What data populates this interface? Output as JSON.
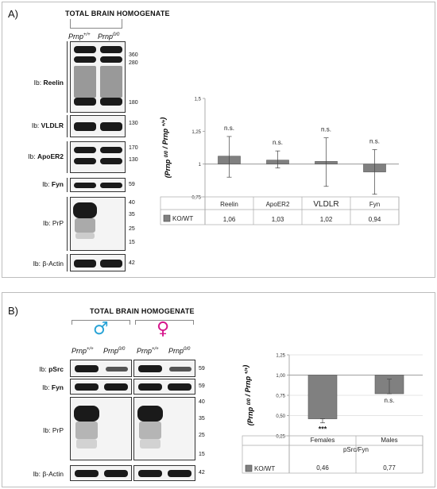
{
  "panel_a": {
    "letter": "A)",
    "title": "TOTAL BRAIN HOMOGENATE",
    "genotypes": [
      {
        "base": "Prnp",
        "sup": "+/+"
      },
      {
        "base": "Prnp",
        "sup": "0/0"
      }
    ],
    "blots": [
      {
        "label_prefix": "Ib: ",
        "label_strong": "Reelin",
        "mw": [
          "360",
          "280",
          "180"
        ]
      },
      {
        "label_prefix": "Ib: ",
        "label_strong": "VLDLR",
        "mw": [
          "130"
        ]
      },
      {
        "label_prefix": "Ib: ",
        "label_strong": "ApoER2",
        "mw": [
          "170",
          "130"
        ]
      },
      {
        "label_prefix": "Ib: ",
        "label_strong": "Fyn",
        "mw": [
          "59"
        ]
      },
      {
        "label_prefix": "Ib: PrP",
        "label_strong": "",
        "mw": [
          "40",
          "35",
          "25",
          "15"
        ]
      },
      {
        "label_prefix": "Ib: β-Actin",
        "label_strong": "",
        "mw": [
          "42"
        ]
      }
    ]
  },
  "panel_b": {
    "letter": "B)",
    "title": "TOTAL BRAIN HOMOGENATE",
    "male_symbol": "♂",
    "female_symbol": "♀",
    "male_color": "#29a3d6",
    "female_color": "#d6178c",
    "genotypes": [
      {
        "base": "Prnp",
        "sup": "+/+"
      },
      {
        "base": "Prnp",
        "sup": "0/0"
      },
      {
        "base": "Prnp",
        "sup": "+/+"
      },
      {
        "base": "Prnp",
        "sup": "0/0"
      }
    ],
    "blots": [
      {
        "label_prefix": "Ib: ",
        "label_strong": "pSrc",
        "mw": [
          "59"
        ]
      },
      {
        "label_prefix": "Ib: ",
        "label_strong": "Fyn",
        "mw": [
          "59"
        ]
      },
      {
        "label_prefix": "Ib: PrP",
        "label_strong": "",
        "mw": [
          "40",
          "35",
          "25",
          "15"
        ]
      },
      {
        "label_prefix": "Ib: β-Actin",
        "label_strong": "",
        "mw": [
          "42"
        ]
      }
    ]
  },
  "chart_data": [
    {
      "type": "bar",
      "ylabel": "(Prnp 0/0 / Prnp +/+)",
      "ylim": [
        0.75,
        1.5
      ],
      "yticks": [
        "0,75",
        "1",
        "1,25",
        "1,5"
      ],
      "baseline": 1,
      "categories": [
        "Reelin",
        "ApoER2",
        "VLDLR",
        "Fyn"
      ],
      "series": [
        {
          "name": "KO/WT",
          "values": [
            1.06,
            1.03,
            1.02,
            0.94
          ],
          "value_labels": [
            "1,06",
            "1,03",
            "1,02",
            "0,94"
          ]
        }
      ],
      "error_high": [
        1.21,
        1.1,
        1.2,
        1.11
      ],
      "error_low": [
        0.9,
        0.97,
        0.83,
        0.77
      ],
      "annotations": [
        "n.s.",
        "n.s.",
        "n.s.",
        "n.s."
      ],
      "bar_color": "#808080",
      "grid": false
    },
    {
      "type": "bar",
      "ylabel": "(Prnp 0/0 / Prnp +/+)",
      "xlabel": "pSrc/Fyn",
      "ylim": [
        0.25,
        1.25
      ],
      "yticks": [
        "0,25",
        "0,50",
        "0,75",
        "1,00",
        "1,25"
      ],
      "baseline": 1,
      "categories": [
        "Females",
        "Males"
      ],
      "series": [
        {
          "name": "KO/WT",
          "values": [
            0.46,
            0.77
          ],
          "value_labels": [
            "0,46",
            "0,77"
          ]
        }
      ],
      "error_high": [
        0.46,
        0.95
      ],
      "error_low": [
        0.41,
        0.77
      ],
      "annotations": [
        "***",
        "n.s."
      ],
      "bar_color": "#808080",
      "grid": true
    }
  ]
}
